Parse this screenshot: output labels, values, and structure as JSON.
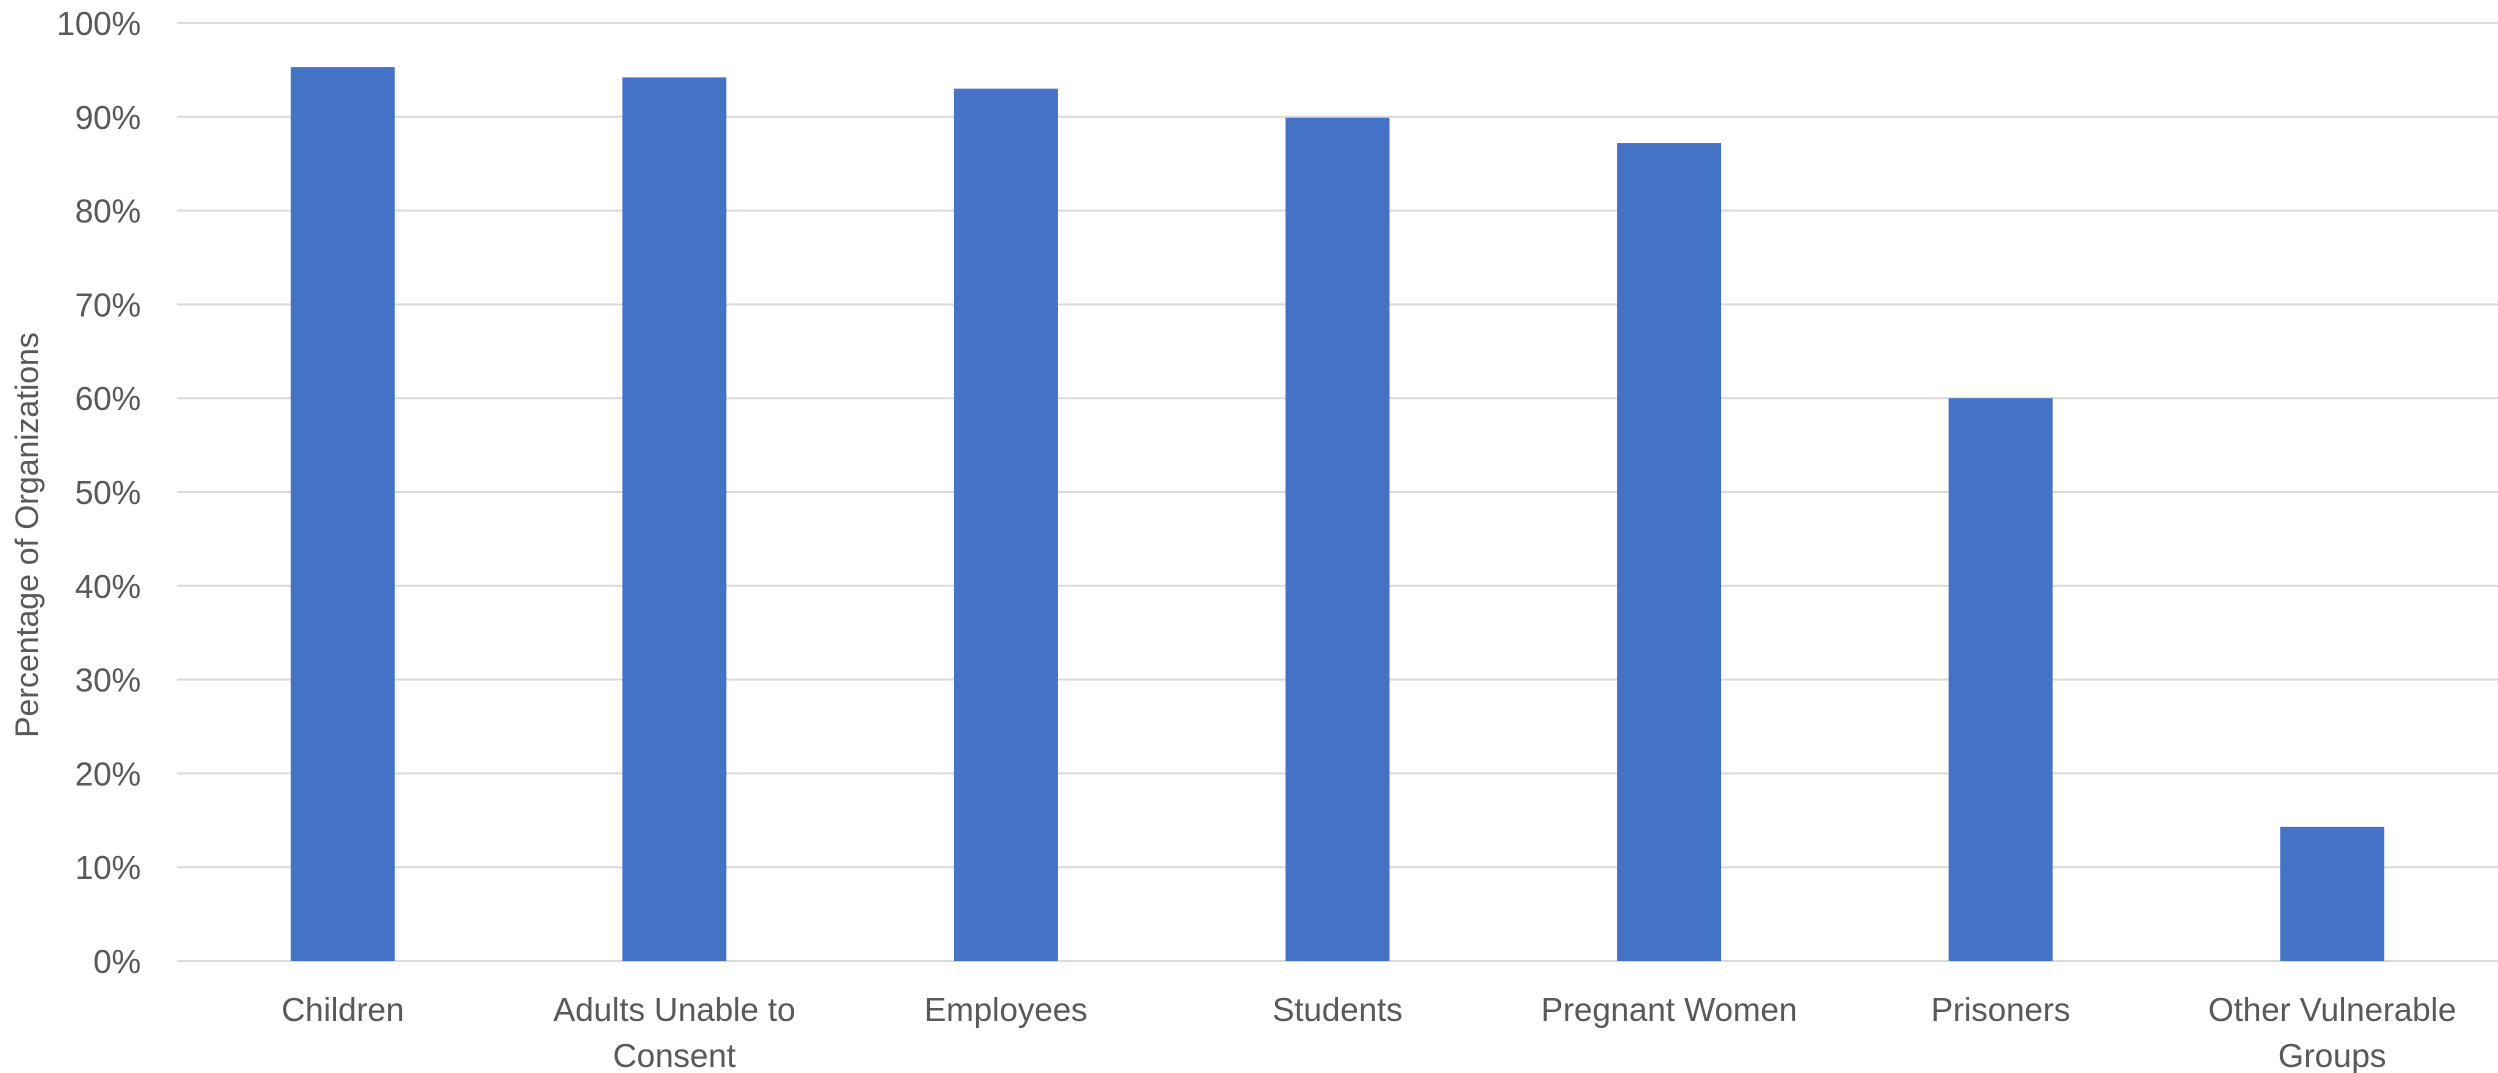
{
  "chart_data": {
    "type": "bar",
    "title": "",
    "xlabel": "",
    "ylabel": "Percentage of Organizations",
    "categories": [
      [
        "Children"
      ],
      [
        "Adults Unable to",
        "Consent"
      ],
      [
        "Employees"
      ],
      [
        "Students"
      ],
      [
        "Pregnant Women"
      ],
      [
        "Prisoners"
      ],
      [
        "Other Vulnerable",
        "Groups"
      ]
    ],
    "series": [
      {
        "values": [
          95.3,
          94.2,
          93.0,
          89.9,
          87.2,
          60.0,
          14.3
        ],
        "color": "#4472C4"
      }
    ],
    "ylim": [
      0,
      100
    ],
    "yticks": [
      0,
      10,
      20,
      30,
      40,
      50,
      60,
      70,
      80,
      90,
      100
    ],
    "ytick_labels": [
      "0%",
      "10%",
      "20%",
      "30%",
      "40%",
      "50%",
      "60%",
      "70%",
      "80%",
      "90%",
      "100%"
    ],
    "grid": true,
    "legend": "none"
  }
}
